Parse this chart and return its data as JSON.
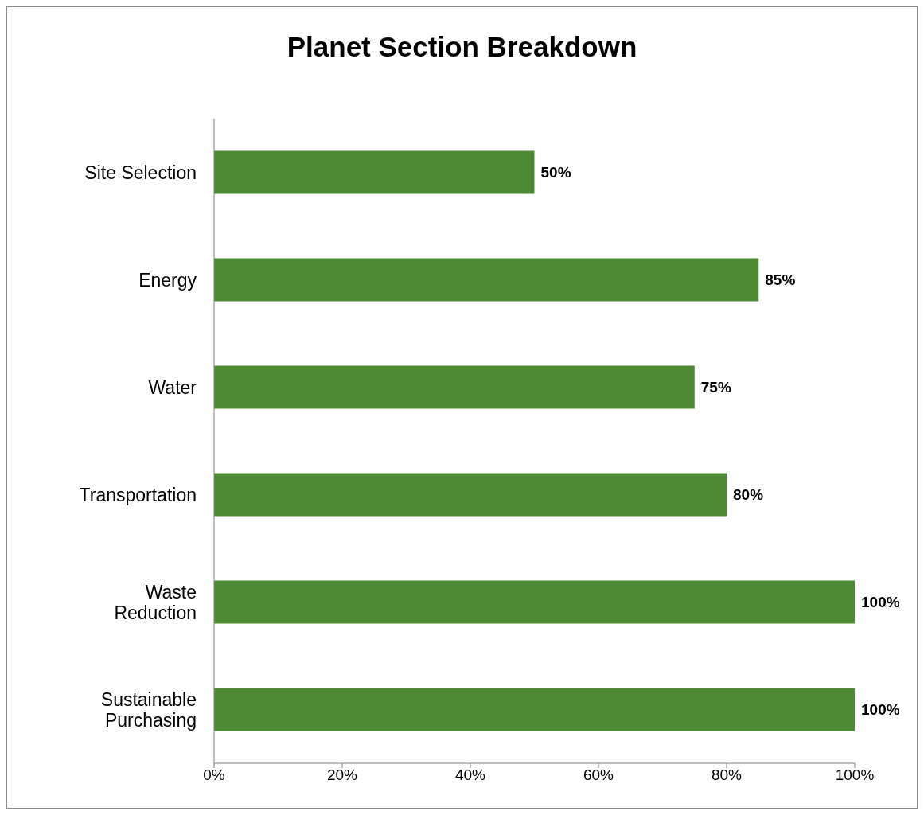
{
  "chart_data": {
    "type": "bar",
    "orientation": "horizontal",
    "title": "Planet Section Breakdown",
    "categories": [
      "Site Selection",
      "Energy",
      "Water",
      "Transportation",
      "Waste Reduction",
      "Sustainable Purchasing"
    ],
    "values": [
      50,
      85,
      75,
      80,
      100,
      100
    ],
    "value_labels": [
      "50%",
      "85%",
      "75%",
      "80%",
      "100%",
      "100%"
    ],
    "color": "#4e8a33",
    "xlim": [
      0,
      100
    ],
    "xticks": [
      {
        "value": 0,
        "label": "0%"
      },
      {
        "value": 20,
        "label": "20%"
      },
      {
        "value": 40,
        "label": "40%"
      },
      {
        "value": 60,
        "label": "60%"
      },
      {
        "value": 80,
        "label": "80%"
      },
      {
        "value": 100,
        "label": "100%"
      }
    ],
    "grid": false,
    "legend": false
  }
}
